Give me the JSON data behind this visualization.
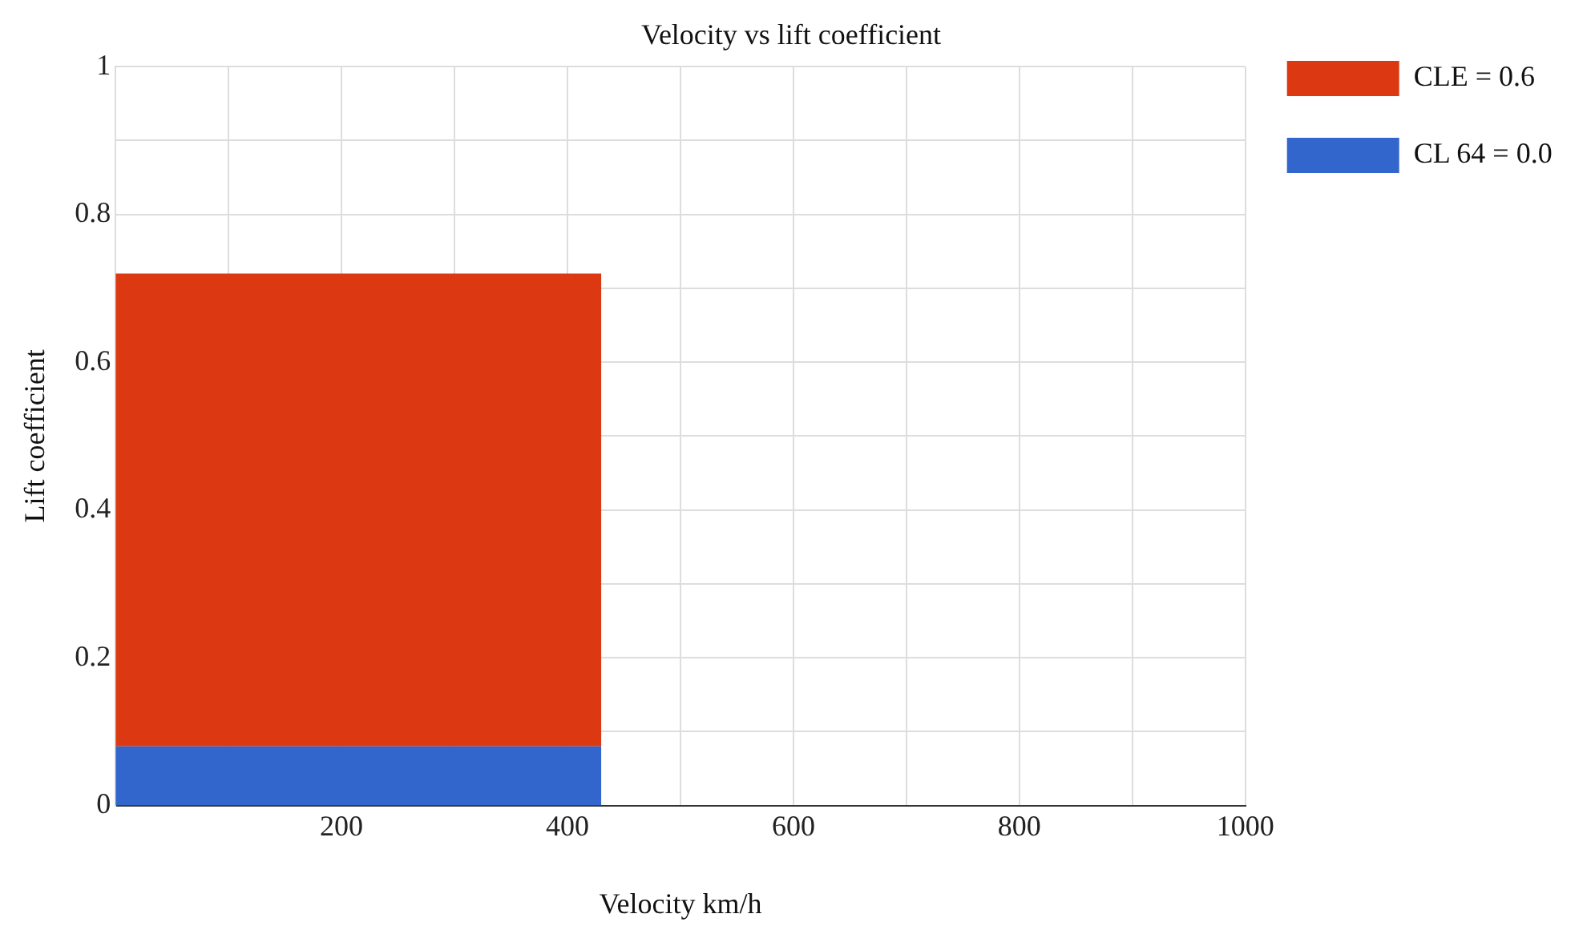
{
  "chart_data": {
    "type": "area",
    "title": "Velocity vs lift coefficient",
    "xlabel": "Velocity km/h",
    "ylabel": "Lift coefficient",
    "stacked": true,
    "x": [
      0,
      430
    ],
    "series": [
      {
        "name": "CL 64 = 0.0",
        "color": "#3366cc",
        "values": [
          0.08,
          0.08
        ]
      },
      {
        "name": "CLE = 0.6",
        "color": "#dc3912",
        "values": [
          0.64,
          0.64
        ]
      }
    ],
    "xlim": [
      0,
      1000
    ],
    "xticks": [
      {
        "value": 0,
        "label": null
      },
      {
        "value": 100,
        "label": null
      },
      200,
      {
        "value": 300,
        "label": null
      },
      400,
      {
        "value": 500,
        "label": null
      },
      600,
      {
        "value": 700,
        "label": null
      },
      800,
      {
        "value": 900,
        "label": null
      },
      1000
    ],
    "ylim": [
      0,
      1
    ],
    "yticks": [
      0,
      {
        "value": 0.1,
        "label": null
      },
      0.2,
      {
        "value": 0.3,
        "label": null
      },
      0.4,
      {
        "value": 0.5,
        "label": null
      },
      0.6,
      {
        "value": 0.7,
        "label": null
      },
      0.8,
      {
        "value": 0.9,
        "label": null
      },
      1
    ],
    "grid": true,
    "legend": "top right"
  }
}
